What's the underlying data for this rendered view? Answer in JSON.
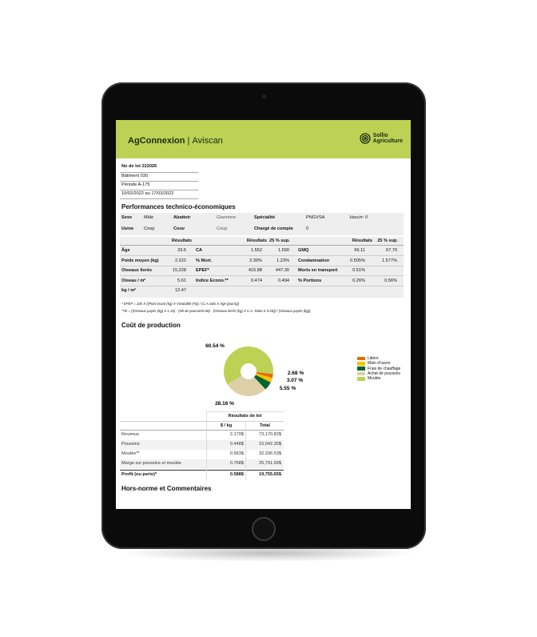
{
  "header": {
    "brand": "AgConnexion",
    "product": "Aviscan",
    "logo_line1": "Sollio",
    "logo_line2": "Agriculture",
    "accent": "#bdd155"
  },
  "lot": {
    "number": "No de lot 222026",
    "batiment": "Bâtiment 030",
    "periode": "Période A-175",
    "dates": "10/02/2022 au 17/03/2022"
  },
  "perf": {
    "title": "Performances technico-économiques",
    "info": [
      [
        "Sexe",
        "Mâle",
        "Abattoir",
        "Giannone",
        "Spécialité",
        "PNGVSA",
        "Vaccin: 0"
      ],
      [
        "Usine",
        "Coop",
        "Couv",
        "Coop",
        "Chargé de compte",
        "0",
        ""
      ]
    ],
    "headers": [
      "Résultats",
      "Résultats",
      "25 % sup.",
      "Résultats",
      "25 % sup."
    ],
    "rows": [
      [
        "Âge",
        "33.6",
        "CA",
        "1.552",
        "1.500",
        "GMQ",
        "66.11",
        "67.70"
      ],
      [
        "Poids moyen (kg)",
        "2.222",
        "% Mort.",
        "2.39%",
        "1.23%",
        "Condamnation",
        "0.505%",
        "1.577%"
      ],
      [
        "Oiseaux livrés",
        "15,228",
        "EPEF*",
        "415.88",
        "447.30",
        "Morts en transport",
        "0.51%",
        ""
      ],
      [
        "Oiseau / m²",
        "5.61",
        "Indice Econo.**",
        "0.474",
        "0.494",
        "% Portions",
        "0.26%",
        "0.56%"
      ],
      [
        "kg / m²",
        "12.47",
        "",
        "",
        "",
        "",
        "",
        ""
      ]
    ],
    "foot1": "* EPEF = 100 X ((Poid vivant (kg) X Viviabilité (%)) / (C.A ratio X Âge (jours)))",
    "foot2": "**IE = ((Oiseaux payés (kg) X 1.15) - (Nb de poussin/0.56) - (Oiseaux livrés (kg) X C.A. Ratio X 0.26)) / (Oiseaux payés (kg))"
  },
  "cost": {
    "title": "Coût de production"
  },
  "chart_data": {
    "type": "pie",
    "donut": true,
    "categories": [
      "Litière",
      "Main d'ouvre",
      "Frais de chauffage",
      "Achat de poussins",
      "Moulée"
    ],
    "values": [
      2.68,
      3.07,
      5.55,
      28.16,
      60.54
    ],
    "labels": [
      "2.68 %",
      "3.07 %",
      "5.55 %",
      "28.16 %",
      "60.54 %"
    ],
    "colors": [
      "#e36c0a",
      "#ffc000",
      "#00642e",
      "#ddd0a8",
      "#bdd155"
    ],
    "legend": "right"
  },
  "results": {
    "group": "Résultats de lot",
    "headers": [
      "$ / kg",
      "Total"
    ],
    "rows": [
      [
        "Revenus",
        "2.179$",
        "73,170.82$"
      ],
      [
        "Poussins",
        "0.448$",
        "15,042.30$"
      ],
      [
        "Moulée**",
        "0.963$",
        "32,336.53$"
      ],
      [
        "Marge sur poussins et moulée",
        "0.768$",
        "25,791.99$"
      ]
    ],
    "total": [
      "Profit (ou perte)*",
      "0.588$",
      "19,755.65$"
    ]
  },
  "comments": {
    "title": "Hors-norme et Commentaires"
  }
}
